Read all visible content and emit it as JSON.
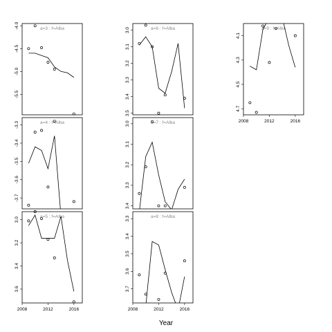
{
  "chart_data": {
    "type": "scatter",
    "xlabel": "Year",
    "panels": [
      {
        "strip": "a=3 : f=Alba",
        "xlim": [
          2008,
          2017.3
        ],
        "ylim": [
          -5.95,
          -3.95
        ],
        "yticks": [
          -4.0,
          -4.5,
          -5.0,
          -5.5
        ],
        "ytick_labels": [
          "-4.0",
          "-4.5",
          "-5.0",
          "-5.5"
        ],
        "xticks": [],
        "points": [
          [
            2009,
            -4.5
          ],
          [
            2010,
            -4.0
          ],
          [
            2011,
            -4.48
          ],
          [
            2012,
            -4.8
          ],
          [
            2013,
            -4.95
          ],
          [
            2016,
            -5.93
          ]
        ],
        "line": [
          [
            2009,
            -4.6
          ],
          [
            2010,
            -4.6
          ],
          [
            2011,
            -4.65
          ],
          [
            2012,
            -4.7
          ],
          [
            2013,
            -4.9
          ],
          [
            2014,
            -5.0
          ],
          [
            2015,
            -5.03
          ],
          [
            2016,
            -5.13
          ]
        ]
      },
      {
        "strip": "a=6 : f=Alba",
        "xlim": [
          2008,
          2017.3
        ],
        "ylim": [
          -3.51,
          -2.96
        ],
        "yticks": [
          -3.0,
          -3.1,
          -3.2,
          -3.3,
          -3.4,
          -3.5
        ],
        "ytick_labels": [
          "3.0",
          "3.1",
          "3.2",
          "3.3",
          "3.4",
          "3.5"
        ],
        "xticks": [],
        "points": [
          [
            2009,
            -3.08
          ],
          [
            2010,
            -2.97
          ],
          [
            2011,
            -3.1
          ],
          [
            2012,
            -3.5
          ],
          [
            2013,
            -3.39
          ],
          [
            2016,
            -3.41
          ]
        ],
        "line": [
          [
            2009,
            -3.09
          ],
          [
            2010,
            -3.04
          ],
          [
            2011,
            -3.1
          ],
          [
            2012,
            -3.35
          ],
          [
            2013,
            -3.38
          ],
          [
            2014,
            -3.25
          ],
          [
            2015,
            -3.08
          ],
          [
            2016,
            -3.47
          ]
        ]
      },
      {
        "strip": "a=9 : f=Alba",
        "xlim": [
          2008,
          2017.3
        ],
        "ylim": [
          -4.75,
          -4.0
        ],
        "yticks": [
          -4.1,
          -4.3,
          -4.5,
          -4.7
        ],
        "ytick_labels": [
          "4.1",
          "4.3",
          "4.5",
          "4.7"
        ],
        "xticks": [
          2008,
          2012,
          2016
        ],
        "points": [
          [
            2009,
            -4.65
          ],
          [
            2010,
            -4.73
          ],
          [
            2011,
            -4.02
          ],
          [
            2012,
            -4.32
          ],
          [
            2013,
            -4.04
          ],
          [
            2016,
            -4.1
          ]
        ],
        "line": [
          [
            2009,
            -4.35
          ],
          [
            2010,
            -4.38
          ],
          [
            2011,
            -4.05
          ],
          [
            2012,
            -3.95
          ],
          [
            2013,
            -3.95
          ],
          [
            2014,
            -3.95
          ],
          [
            2015,
            -4.18
          ],
          [
            2016,
            -4.36
          ]
        ]
      },
      {
        "strip": "a=4 : f=Alba",
        "xlim": [
          2008,
          2017.3
        ],
        "ylim": [
          -3.76,
          -3.26
        ],
        "yticks": [
          -3.3,
          -3.4,
          -3.5,
          -3.6,
          -3.7
        ],
        "ytick_labels": [
          "-3.3",
          "-3.4",
          "-3.5",
          "-3.6",
          "-3.7"
        ],
        "xticks": [],
        "points": [
          [
            2009,
            -3.74
          ],
          [
            2010,
            -3.34
          ],
          [
            2011,
            -3.33
          ],
          [
            2012,
            -3.64
          ],
          [
            2013,
            -3.28
          ],
          [
            2016,
            -3.72
          ]
        ],
        "line": [
          [
            2009,
            -3.51
          ],
          [
            2010,
            -3.42
          ],
          [
            2011,
            -3.44
          ],
          [
            2012,
            -3.54
          ],
          [
            2013,
            -3.36
          ],
          [
            2014,
            -3.8
          ]
        ]
      },
      {
        "strip": "a=7 : f=Alba",
        "xlim": [
          2008,
          2017.3
        ],
        "ylim": [
          -3.415,
          -2.97
        ],
        "yticks": [
          -3.0,
          -3.1,
          -3.2,
          -3.3,
          -3.4
        ],
        "ytick_labels": [
          "3.0",
          "3.1",
          "3.2",
          "3.3",
          "3.4"
        ],
        "xticks": [],
        "points": [
          [
            2009,
            -3.34
          ],
          [
            2010,
            -3.21
          ],
          [
            2011,
            -2.99
          ],
          [
            2012,
            -3.4
          ],
          [
            2013,
            -3.4
          ],
          [
            2016,
            -3.31
          ]
        ],
        "line": [
          [
            2009,
            -3.43
          ],
          [
            2010,
            -3.16
          ],
          [
            2011,
            -3.09
          ],
          [
            2012,
            -3.25
          ],
          [
            2013,
            -3.38
          ],
          [
            2014,
            -3.42
          ],
          [
            2015,
            -3.32
          ],
          [
            2016,
            -3.27
          ]
        ]
      },
      {
        "strip": "a=5 : f=Alba",
        "xlim": [
          2008,
          2017.3
        ],
        "ylim": [
          -3.72,
          -2.93
        ],
        "yticks": [
          -3.0,
          -3.2,
          -3.4,
          -3.6
        ],
        "ytick_labels": [
          "3.0",
          "3.2",
          "3.4",
          "3.6"
        ],
        "xticks": [
          2008,
          2012,
          2016
        ],
        "points": [
          [
            2009,
            -3.01
          ],
          [
            2010,
            -2.93
          ],
          [
            2011,
            -2.99
          ],
          [
            2012,
            -3.17
          ],
          [
            2013,
            -3.33
          ],
          [
            2016,
            -3.71
          ]
        ],
        "line": [
          [
            2009,
            -3.05
          ],
          [
            2010,
            -2.96
          ],
          [
            2011,
            -3.16
          ],
          [
            2012,
            -3.16
          ],
          [
            2013,
            -3.16
          ],
          [
            2014,
            -2.97
          ],
          [
            2015,
            -3.35
          ],
          [
            2016,
            -3.62
          ]
        ]
      },
      {
        "strip": "a=8 : f=Alba",
        "xlim": [
          2008,
          2017.3
        ],
        "ylim": [
          -3.78,
          -3.26
        ],
        "yticks": [
          -3.3,
          -3.4,
          -3.5,
          -3.6,
          -3.7
        ],
        "ytick_labels": [
          "3.3",
          "3.4",
          "3.5",
          "3.6",
          "3.7"
        ],
        "xticks": [
          2008,
          2012,
          2016
        ],
        "points": [
          [
            2009,
            -3.62
          ],
          [
            2010,
            -3.73
          ],
          [
            2012,
            -3.76
          ],
          [
            2013,
            -3.61
          ],
          [
            2016,
            -3.54
          ]
        ],
        "line": [
          [
            2010,
            -3.8
          ],
          [
            2011,
            -3.43
          ],
          [
            2012,
            -3.45
          ],
          [
            2013,
            -3.59
          ],
          [
            2014,
            -3.72
          ],
          [
            2015,
            -3.82
          ],
          [
            2016,
            -3.63
          ]
        ]
      }
    ]
  }
}
